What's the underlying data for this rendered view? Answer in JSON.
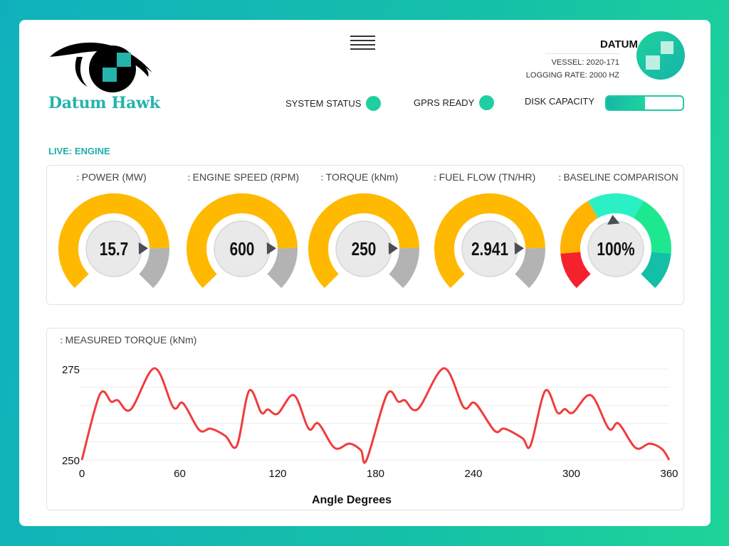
{
  "app": {
    "logo_name": "Datum Hawk",
    "menu_icon": "hamburger-icon"
  },
  "header": {
    "brand": "DATUM",
    "vessel": "VESSEL: 2020-171",
    "logging_rate": "LOGGING RATE: 2000 HZ",
    "status": [
      {
        "label": "SYSTEM STATUS",
        "state": "ok"
      },
      {
        "label": "GPRS READY",
        "state": "ok"
      }
    ],
    "disk": {
      "label": "DISK CAPACITY",
      "used_fraction": 0.5
    },
    "colors": {
      "accent": "#1ecf9f",
      "brand": "#25b3ad"
    }
  },
  "live": {
    "section_label": "LIVE: ENGINE",
    "gauges": [
      {
        "title": "POWER (MW)",
        "value": "15.7",
        "fill_fraction": 0.83
      },
      {
        "title": "ENGINE SPEED (RPM)",
        "value": "600",
        "fill_fraction": 0.83
      },
      {
        "title": "TORQUE (kNm)",
        "value": "250",
        "fill_fraction": 0.83
      },
      {
        "title": "FUEL FLOW (TN/HR)",
        "value": "2.941",
        "fill_fraction": 0.83
      },
      {
        "title": "BASELINE COMPARISON",
        "value": "100%",
        "fill_fraction": 0.48,
        "segments": [
          "#f5222d",
          "#ffb300",
          "#2af0c4",
          "#1ee88f",
          "#13bfa6"
        ]
      }
    ],
    "gauge_colors": {
      "fill": "#ffb900",
      "rest": "#b3b3b3"
    }
  },
  "chart_data": {
    "type": "line",
    "title": "MEASURED TORQUE (kNm)",
    "xlabel": "Angle Degrees",
    "ylabel": "",
    "xlim": [
      0,
      360
    ],
    "ylim": [
      250,
      275
    ],
    "grid": true,
    "x_ticks": [
      "0",
      "60",
      "120",
      "180",
      "240",
      "300",
      "360"
    ],
    "x_tick_values": [
      0,
      60,
      120,
      180,
      240,
      300,
      360
    ],
    "y_ticks": [
      "250",
      "275"
    ],
    "y_tick_values": [
      250,
      275
    ],
    "series": [
      {
        "name": "Torque",
        "color": "#f03c3c",
        "x": [
          0,
          11,
          18,
          22,
          30,
          44.5,
          56,
          62,
          72,
          79,
          88,
          95,
          102.5,
          110,
          114,
          120,
          130,
          139,
          145,
          155,
          164,
          171,
          174.5,
          187,
          194,
          198,
          206,
          222,
          234,
          241,
          253,
          259,
          270,
          275,
          284,
          291.5,
          296,
          301,
          312,
          323,
          329,
          339.5,
          348,
          355.6,
          360
        ],
        "y": [
          250,
          268,
          266,
          266.4,
          263.9,
          275.2,
          264.5,
          265.6,
          258.2,
          258.6,
          256.6,
          253.9,
          269,
          263,
          263.9,
          262.7,
          267.8,
          258.6,
          260,
          253.3,
          254.5,
          252.7,
          250,
          268,
          266,
          266.4,
          264,
          275.2,
          264.5,
          265.6,
          258,
          258.6,
          256,
          254,
          269,
          263,
          264,
          263,
          267.8,
          258.6,
          260,
          253.3,
          254.5,
          253,
          250
        ]
      }
    ]
  }
}
